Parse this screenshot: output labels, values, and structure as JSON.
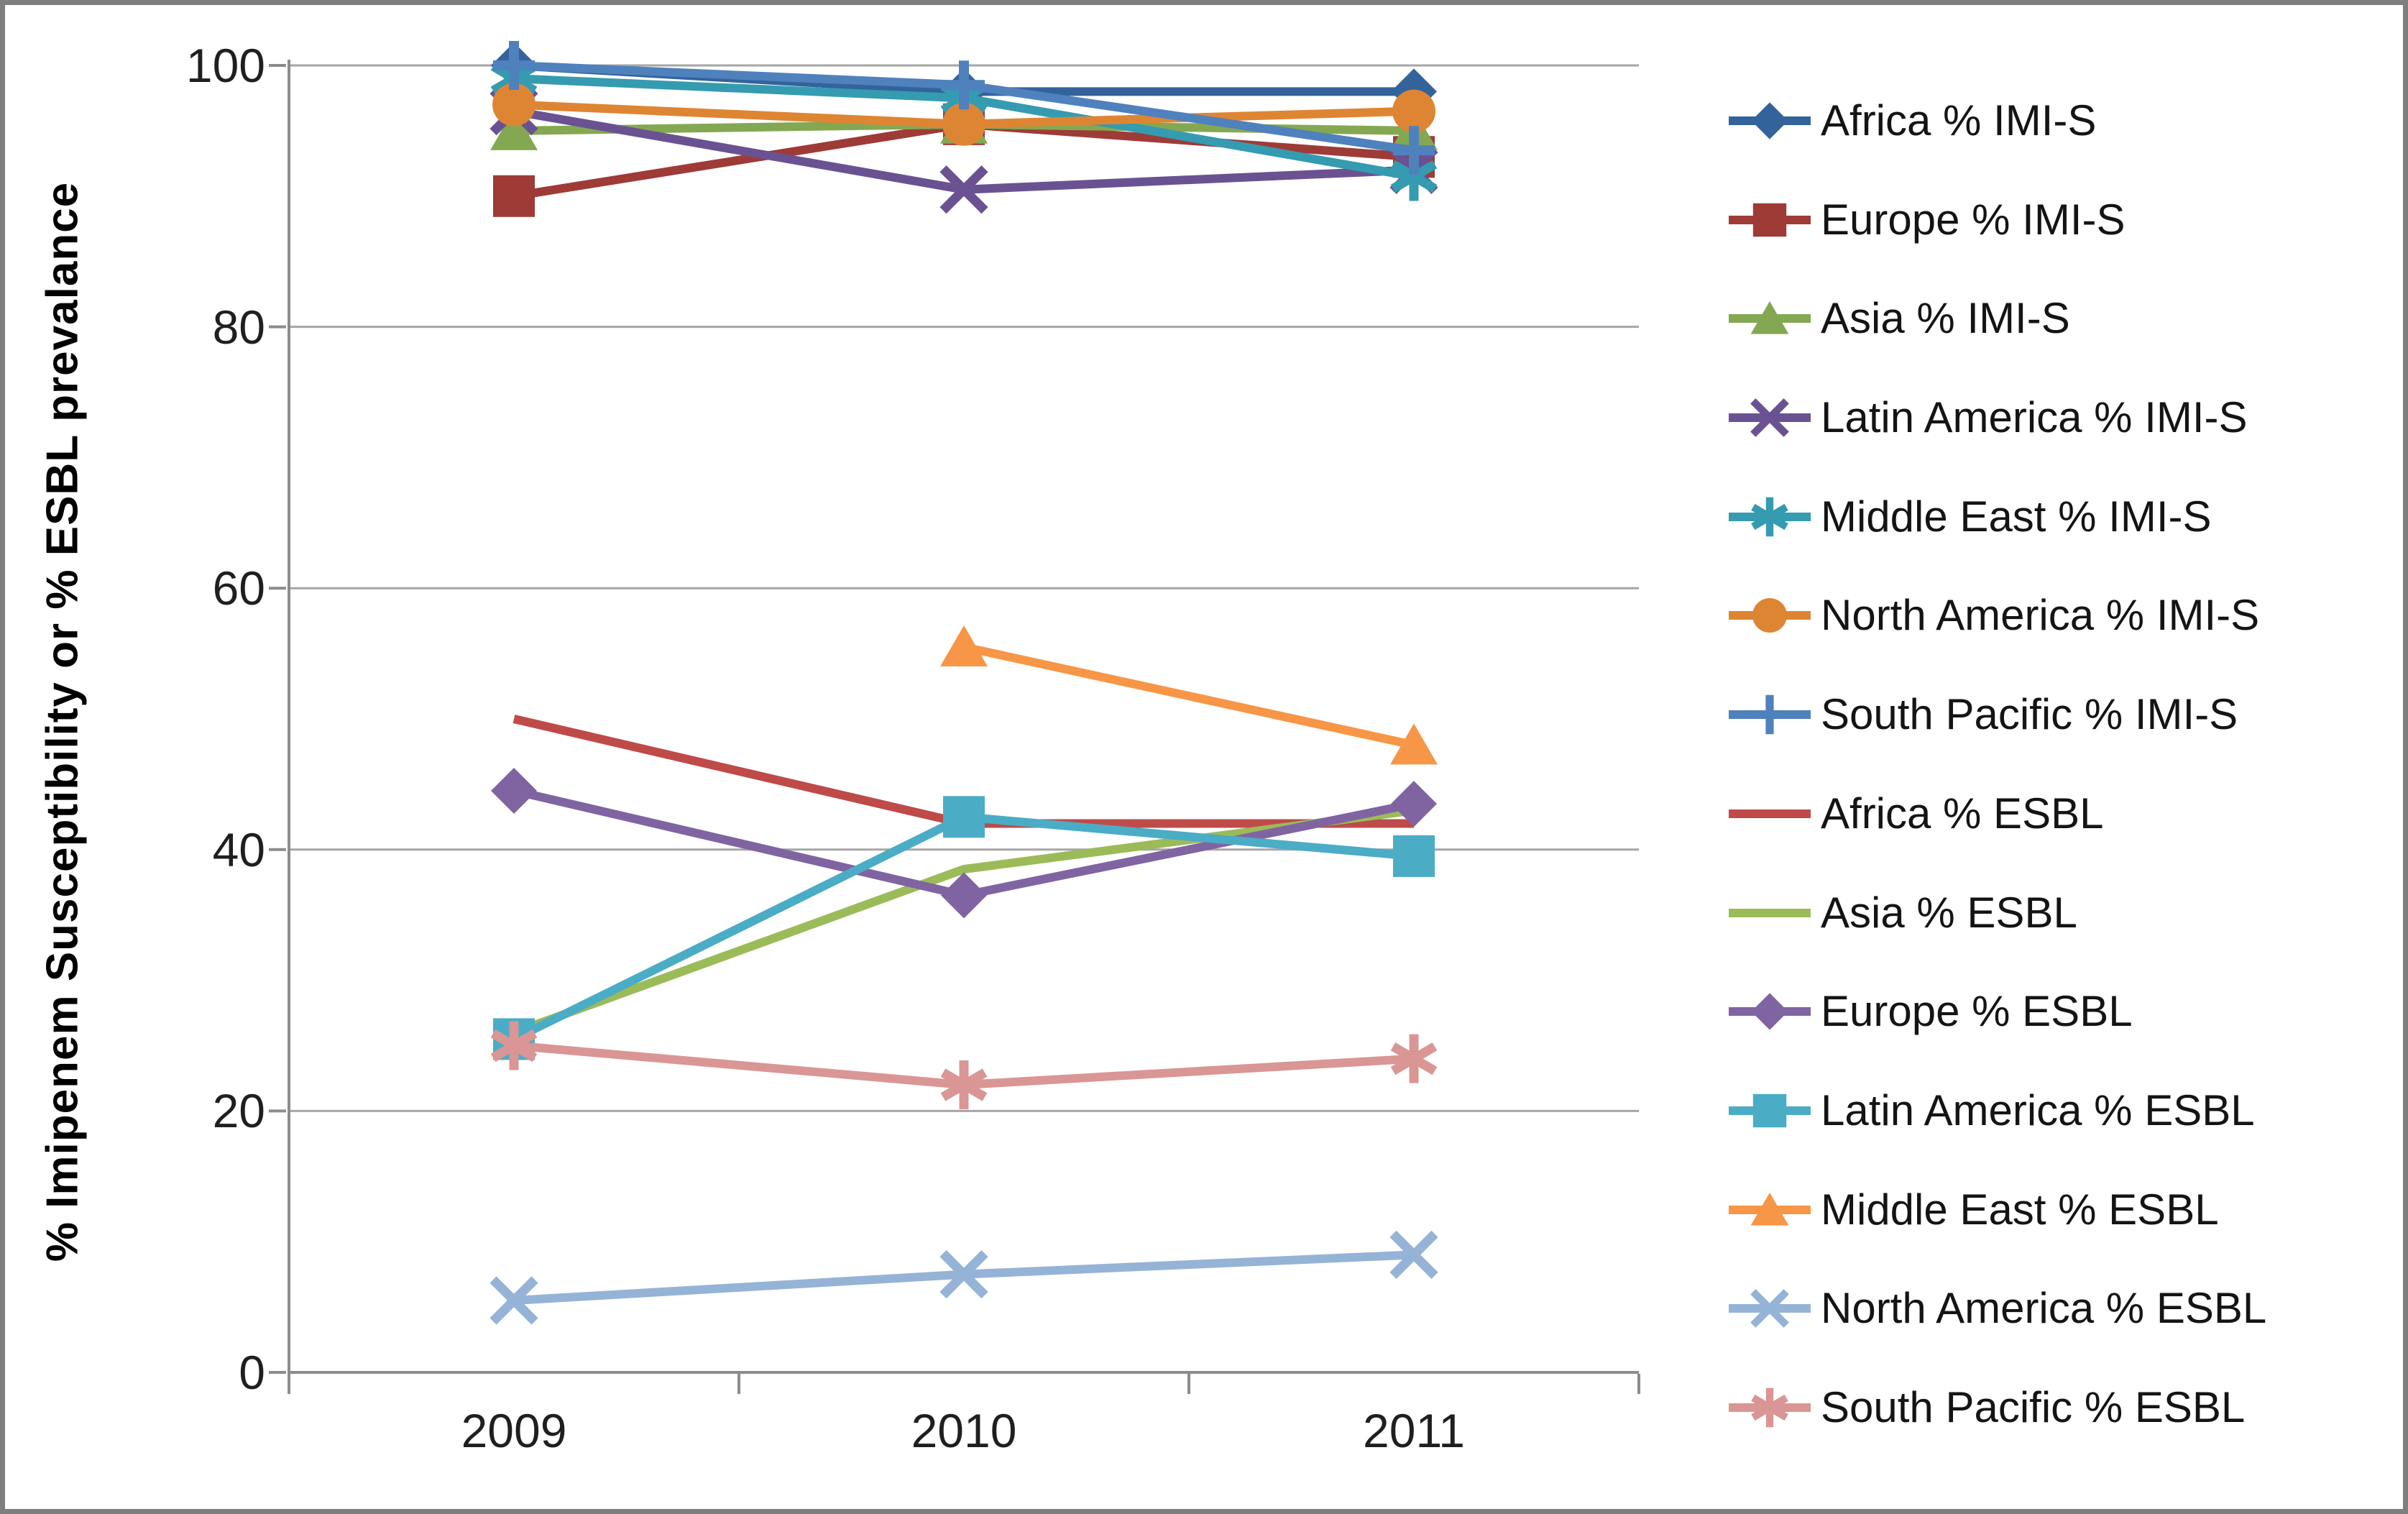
{
  "figure": {
    "border_color": "#7e7e7e",
    "background_color": "#ffffff"
  },
  "chart_data": {
    "type": "line",
    "title": "",
    "xlabel": "",
    "ylabel": "% Imipenem Susceptibility or % ESBL prevalance",
    "categories": [
      "2009",
      "2010",
      "2011"
    ],
    "yticks": [
      0,
      20,
      40,
      60,
      80,
      100
    ],
    "ylim": [
      0,
      100
    ],
    "grid": true,
    "legend_position": "right",
    "style": {
      "grid_color": "#a6a6a6",
      "axis_color": "#8c8c8c",
      "tick_label_color": "#1f1f1f",
      "text_color": "#000000"
    },
    "series": [
      {
        "name": "Africa % IMI-S",
        "color": "#33639b",
        "marker": "diamond",
        "values": [
          100,
          98,
          98
        ]
      },
      {
        "name": "Europe % IMI-S",
        "color": "#9e3b37",
        "marker": "square",
        "values": [
          90,
          95.5,
          93
        ]
      },
      {
        "name": "Asia % IMI-S",
        "color": "#84a852",
        "marker": "triangle",
        "values": [
          95,
          95.5,
          95
        ]
      },
      {
        "name": "Latin America % IMI-S",
        "color": "#6a5292",
        "marker": "x",
        "values": [
          96.5,
          90.5,
          92
        ]
      },
      {
        "name": "Middle East % IMI-S",
        "color": "#359bb0",
        "marker": "asterisk",
        "values": [
          99,
          97.5,
          91.5
        ]
      },
      {
        "name": "North America % IMI-S",
        "color": "#de8534",
        "marker": "circle",
        "values": [
          97,
          95.5,
          96.5
        ]
      },
      {
        "name": "South Pacific % IMI-S",
        "color": "#4f81bd",
        "marker": "plus",
        "values": [
          100,
          98.5,
          93.5
        ]
      },
      {
        "name": "Africa % ESBL",
        "color": "#be4b48",
        "marker": "none",
        "values": [
          50,
          42,
          42
        ]
      },
      {
        "name": "Asia % ESBL",
        "color": "#9bbb59",
        "marker": "none",
        "values": [
          26,
          38.5,
          43
        ]
      },
      {
        "name": "Europe % ESBL",
        "color": "#8064a2",
        "marker": "diamond",
        "values": [
          44.5,
          36.5,
          43.5
        ]
      },
      {
        "name": "Latin America % ESBL",
        "color": "#4bacc6",
        "marker": "square",
        "values": [
          25.5,
          42.5,
          39.5
        ]
      },
      {
        "name": "Middle East % ESBL",
        "color": "#f79646",
        "marker": "triangle",
        "values": [
          null,
          55.5,
          48
        ]
      },
      {
        "name": "North America % ESBL",
        "color": "#95b3d7",
        "marker": "x",
        "values": [
          5.5,
          7.5,
          9
        ]
      },
      {
        "name": "South Pacific % ESBL",
        "color": "#d99694",
        "marker": "asterisk",
        "values": [
          25,
          22,
          24
        ]
      }
    ]
  }
}
